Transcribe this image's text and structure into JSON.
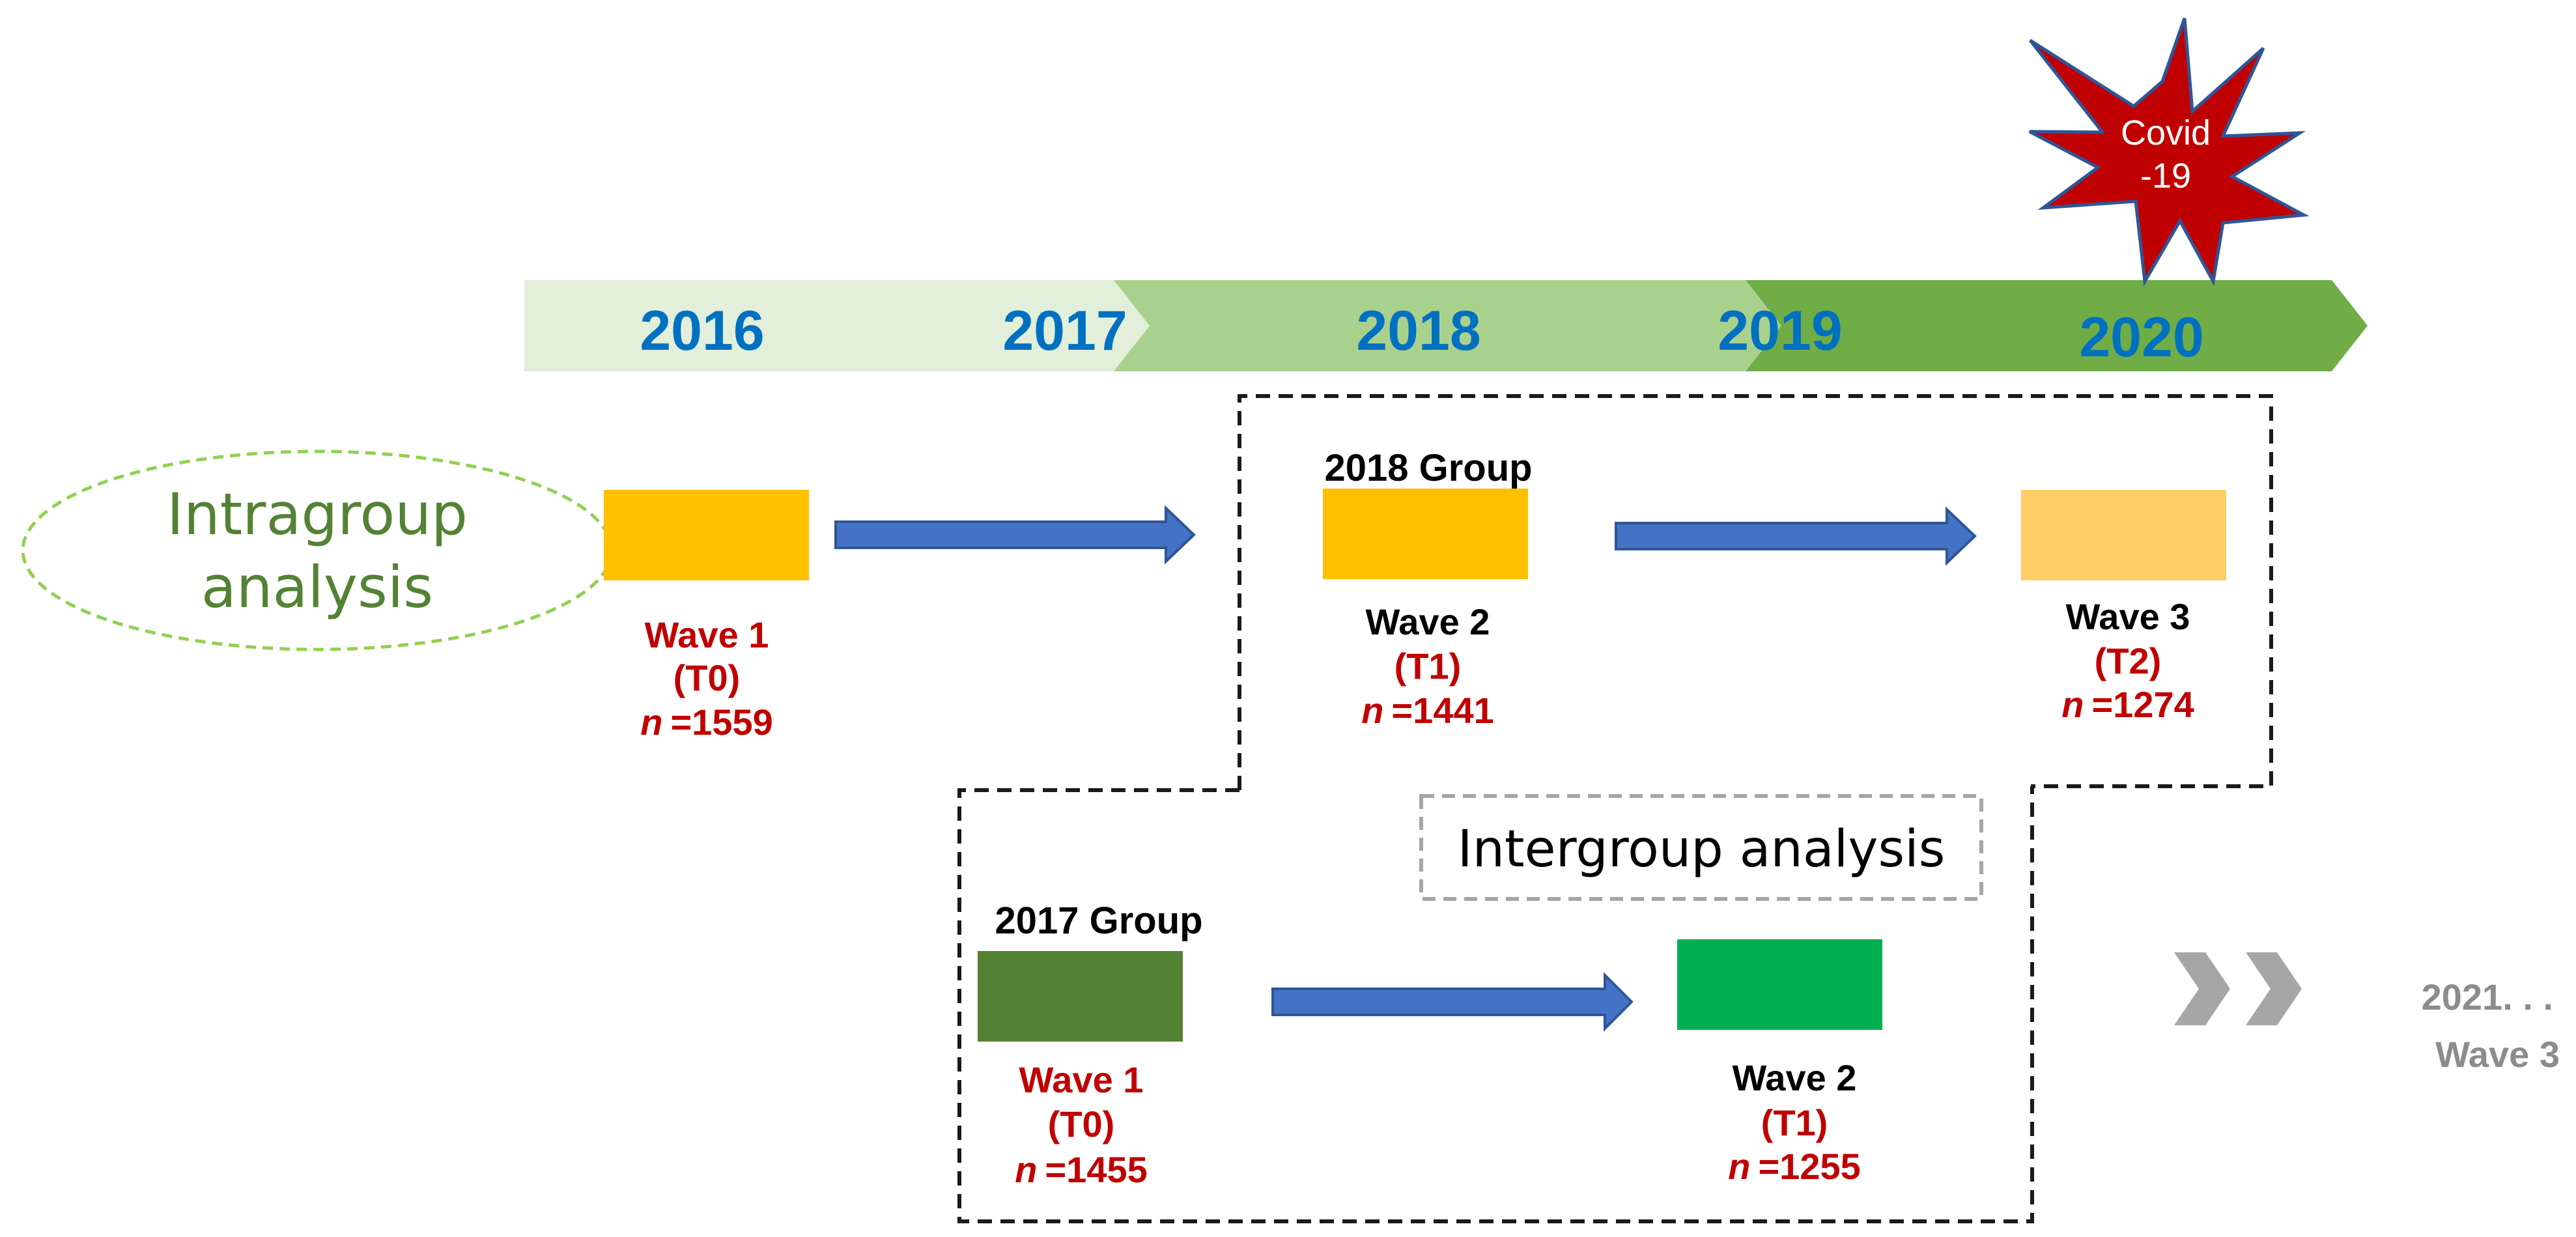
{
  "timeline": {
    "years": [
      "2016",
      "2017",
      "2018",
      "2019",
      "2020"
    ],
    "segment_colors": [
      "#e2efda",
      "#a9d18e",
      "#70ad47"
    ],
    "year_text_color": "#0070c0"
  },
  "covid_badge": {
    "line1": "Covid",
    "line2": "-19",
    "fill": "#c00000",
    "stroke": "#2f5597"
  },
  "intragroup_label": {
    "line1": "Intragroup",
    "line2": "analysis",
    "text_color": "#548235",
    "border_color": "#92d050"
  },
  "intergroup_label": {
    "text": "Intergroup analysis",
    "border_color": "#a6a6a6"
  },
  "group_2018": {
    "title": "2018 Group",
    "waves": [
      {
        "name": "Wave 1",
        "time": "(T0)",
        "n_symbol": "n",
        "n_value": "=1559",
        "box_color": "#ffc000",
        "name_color": "#c00000"
      },
      {
        "name": "Wave 2",
        "time": "(T1)",
        "n_symbol": "n",
        "n_value": "=1441",
        "box_color": "#ffc000",
        "name_color": "#000000"
      },
      {
        "name": "Wave 3",
        "time": "(T2)",
        "n_symbol": "n",
        "n_value": "=1274",
        "box_color": "#ffcc66",
        "name_color": "#000000"
      }
    ]
  },
  "group_2017": {
    "title": "2017 Group",
    "waves": [
      {
        "name": "Wave 1",
        "time": "(T0)",
        "n_symbol": "n",
        "n_value": "=1455",
        "box_color": "#548235",
        "name_color": "#c00000"
      },
      {
        "name": "Wave 2",
        "time": "(T1)",
        "n_symbol": "n",
        "n_value": "=1255",
        "box_color": "#00b050",
        "name_color": "#000000"
      }
    ]
  },
  "future": {
    "year": "2021. . .",
    "wave": "Wave 3",
    "text_color": "#8c8c8c"
  },
  "colors": {
    "arrow": "#4472c4",
    "arrow_stroke": "#2f5597",
    "values_red": "#c00000"
  }
}
